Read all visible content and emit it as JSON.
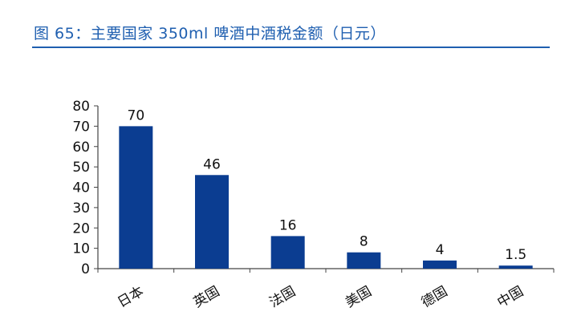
{
  "header": {
    "title": "图 65：主要国家 350ml 啤酒中酒税金额（日元）"
  },
  "colors": {
    "title": "#1f5fb0",
    "bar": "#0b3d91",
    "axis": "#444444"
  },
  "chart_data": {
    "type": "bar",
    "categories": [
      "日本",
      "英国",
      "法国",
      "美国",
      "德国",
      "中国"
    ],
    "values": [
      70,
      46,
      16,
      8,
      4,
      1.5
    ],
    "value_labels": [
      "70",
      "46",
      "16",
      "8",
      "4",
      "1.5"
    ],
    "y_ticks": [
      "0",
      "10",
      "20",
      "30",
      "40",
      "50",
      "60",
      "70",
      "80"
    ],
    "ylim": [
      0,
      80
    ],
    "xlabel": "",
    "ylabel": "",
    "grid": false,
    "legend": "none"
  }
}
